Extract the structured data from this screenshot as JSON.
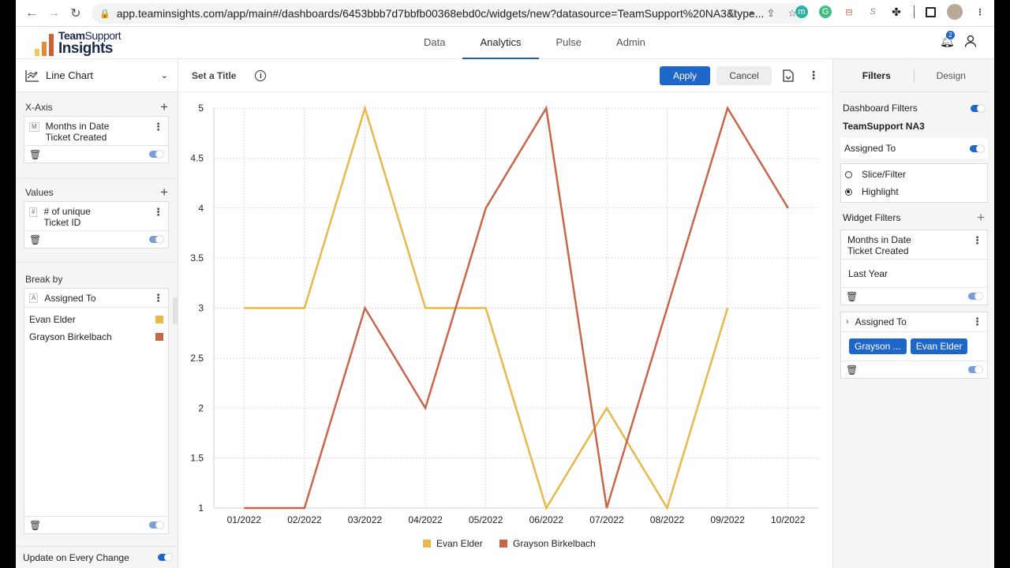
{
  "browser": {
    "url": "app.teaminsights.com/app/main#/dashboards/6453bbb7d7bbfb00368ebd0c/widgets/new?datasource=TeamSupport%20NA3&type...",
    "extensions": [
      "m",
      "G",
      "⊟",
      "S"
    ]
  },
  "header": {
    "logo_line1_bold": "Team",
    "logo_line1": "Support",
    "logo_line2": "Insights",
    "tabs": [
      {
        "label": "Data"
      },
      {
        "label": "Analytics",
        "active": true
      },
      {
        "label": "Pulse"
      },
      {
        "label": "Admin"
      }
    ],
    "notification_count": "2"
  },
  "left_panel": {
    "chart_type": "Line Chart",
    "x_axis": {
      "label": "X-Axis",
      "field_type": "M",
      "field_line1": "Months in Date",
      "field_line2": "Ticket Created"
    },
    "values": {
      "label": "Values",
      "field_type": "#",
      "field_line1": "# of unique",
      "field_line2": "Ticket ID"
    },
    "break_by": {
      "label": "Break by",
      "field_type": "A",
      "field": "Assigned To",
      "members": [
        {
          "name": "Evan Elder",
          "color": "#e8b84a"
        },
        {
          "name": "Grayson Birkelbach",
          "color": "#c8664a"
        }
      ]
    },
    "update_label": "Update on Every Change"
  },
  "toolbar": {
    "title": "Set a Title",
    "apply": "Apply",
    "cancel": "Cancel"
  },
  "right_panel": {
    "tabs": [
      {
        "label": "Filters",
        "active": true
      },
      {
        "label": "Design"
      }
    ],
    "dashboard_filters_label": "Dashboard Filters",
    "datasource": "TeamSupport NA3",
    "assigned_to": "Assigned To",
    "mode_options": [
      {
        "label": "Slice/Filter",
        "selected": false
      },
      {
        "label": "Highlight",
        "selected": true
      }
    ],
    "widget_filters_label": "Widget Filters",
    "filter1": {
      "line1": "Months in Date",
      "line2": "Ticket Created",
      "value": "Last Year"
    },
    "filter2": {
      "label": "Assigned To",
      "chips": [
        "Grayson ...",
        "Evan Elder"
      ]
    }
  },
  "chart_data": {
    "type": "line",
    "title": "",
    "xlabel": "",
    "ylabel": "",
    "categories": [
      "01/2022",
      "02/2022",
      "03/2022",
      "04/2022",
      "05/2022",
      "06/2022",
      "07/2022",
      "08/2022",
      "09/2022",
      "10/2022"
    ],
    "series": [
      {
        "name": "Evan Elder",
        "color": "#e8b84a",
        "values": [
          3,
          3,
          5,
          3,
          3,
          1,
          2,
          1,
          3,
          null
        ]
      },
      {
        "name": "Grayson Birkelbach",
        "color": "#c8664a",
        "values": [
          1,
          1,
          3,
          2,
          4,
          5,
          1,
          3,
          5,
          4
        ]
      }
    ],
    "yticks": [
      "1",
      "1.5",
      "2",
      "2.5",
      "3",
      "3.5",
      "4",
      "4.5",
      "5"
    ],
    "ylim": [
      1,
      5
    ],
    "grid": true,
    "legend_position": "bottom"
  }
}
